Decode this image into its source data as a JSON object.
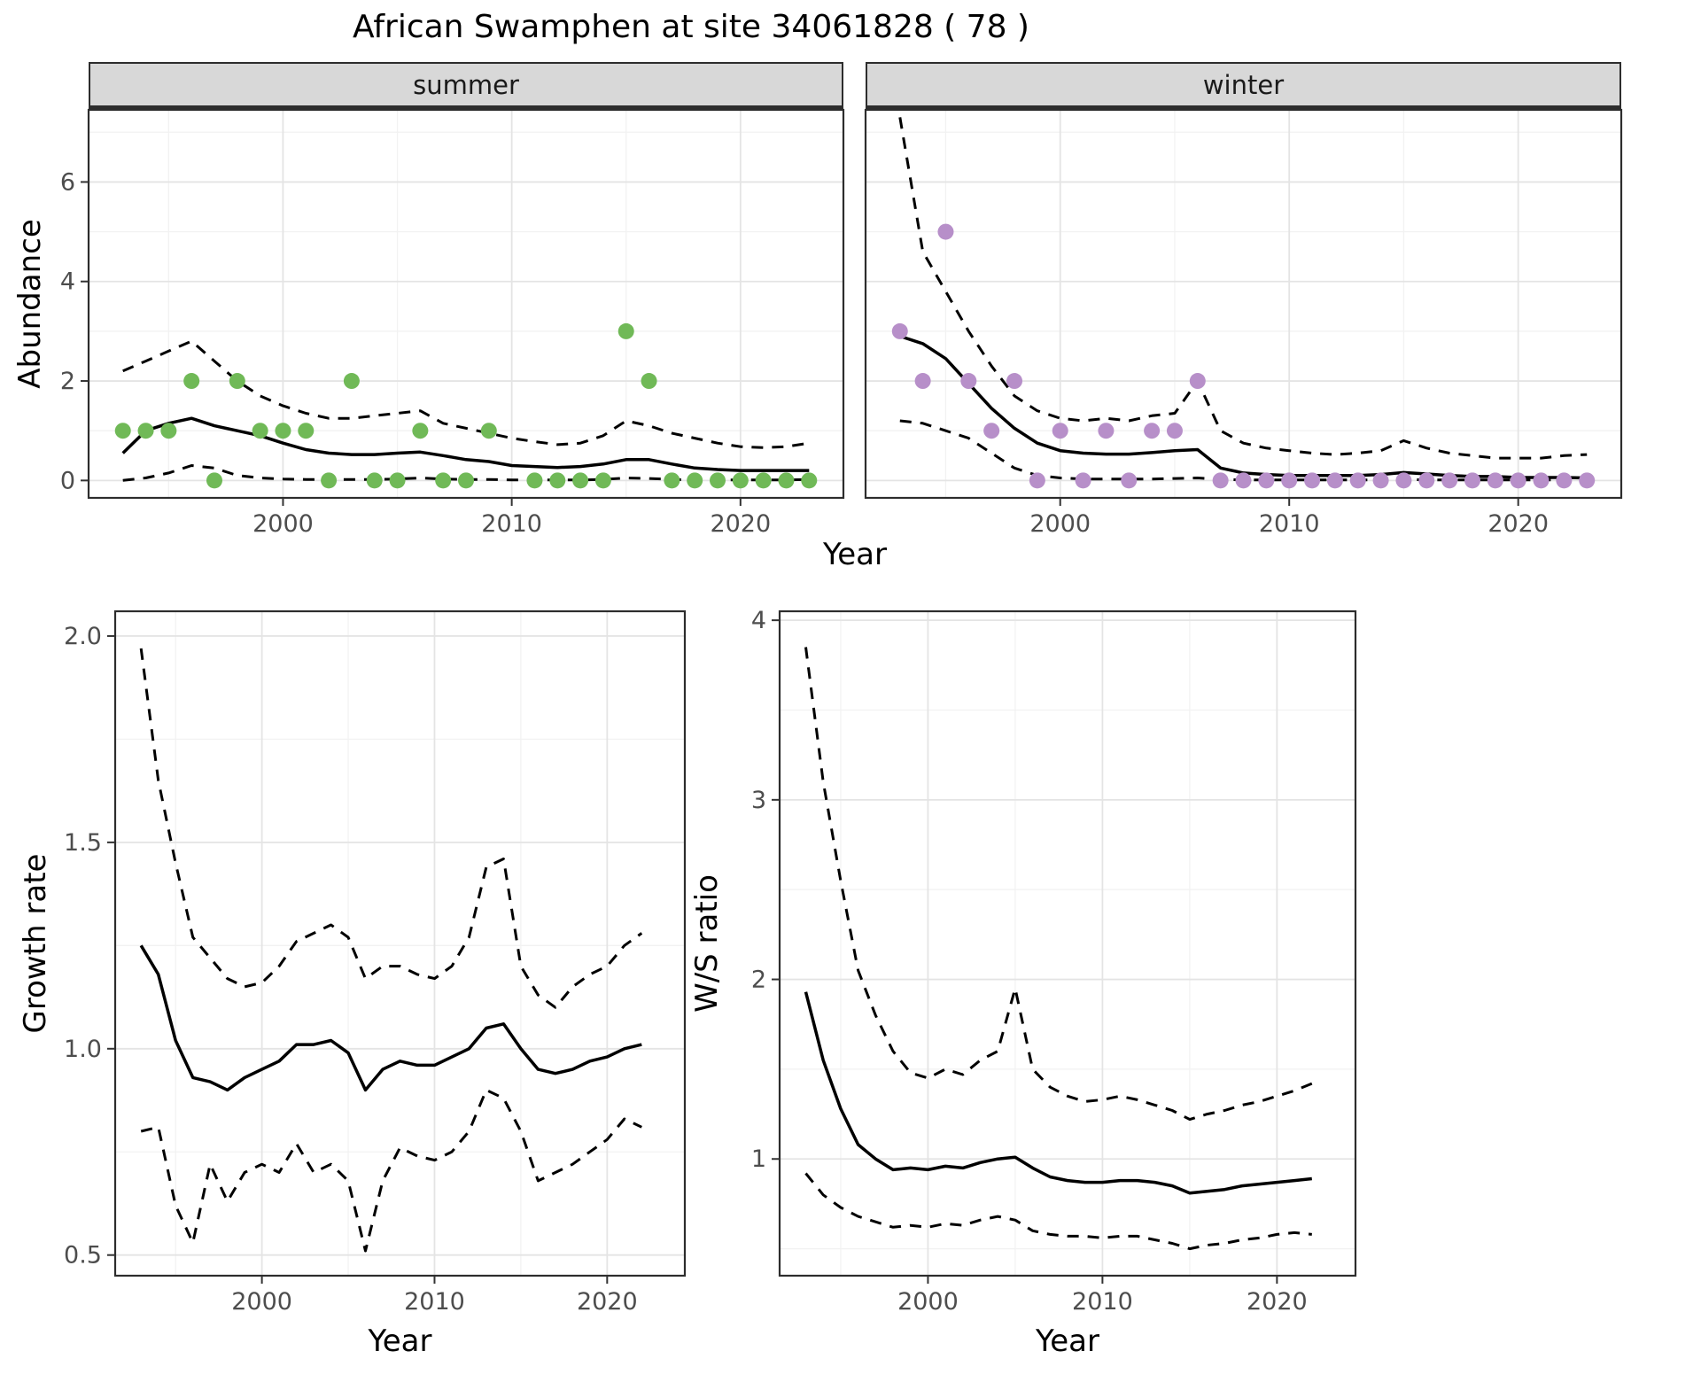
{
  "chart_data": {
    "type": "line",
    "title": "African Swamphen at site 34061828 ( 78 )",
    "line_color": "#000000",
    "ci_line_style": "dashed",
    "facet_row": {
      "ylabel": "Abundance",
      "xlabel": "Year",
      "xlim": [
        1991.5,
        2024.5
      ],
      "ylim": [
        -0.35,
        7.45
      ],
      "xticks": {
        "values": [
          2000,
          2010,
          2020
        ],
        "labels": [
          "2000",
          "2010",
          "2020"
        ]
      },
      "yticks": {
        "values": [
          0,
          2,
          4,
          6
        ],
        "labels": [
          "0",
          "2",
          "4",
          "6"
        ]
      },
      "years": [
        1993,
        1994,
        1995,
        1996,
        1997,
        1998,
        1999,
        2000,
        2001,
        2002,
        2003,
        2004,
        2005,
        2006,
        2007,
        2008,
        2009,
        2010,
        2011,
        2012,
        2013,
        2014,
        2015,
        2016,
        2017,
        2018,
        2019,
        2020,
        2021,
        2022,
        2023
      ],
      "facets": [
        {
          "label": "summer",
          "point_color": "#70b957",
          "points": [
            [
              1993,
              1
            ],
            [
              1994,
              1
            ],
            [
              1995,
              1
            ],
            [
              1996,
              2
            ],
            [
              1997,
              0
            ],
            [
              1998,
              2
            ],
            [
              1999,
              1
            ],
            [
              2000,
              1
            ],
            [
              2001,
              1
            ],
            [
              2002,
              0
            ],
            [
              2003,
              2
            ],
            [
              2004,
              0
            ],
            [
              2005,
              0
            ],
            [
              2006,
              1
            ],
            [
              2007,
              0
            ],
            [
              2008,
              0
            ],
            [
              2009,
              1
            ],
            [
              2011,
              0
            ],
            [
              2012,
              0
            ],
            [
              2013,
              0
            ],
            [
              2014,
              0
            ],
            [
              2015,
              3
            ],
            [
              2016,
              2
            ],
            [
              2017,
              0
            ],
            [
              2018,
              0
            ],
            [
              2019,
              0
            ],
            [
              2020,
              0
            ],
            [
              2021,
              0
            ],
            [
              2022,
              0
            ],
            [
              2023,
              0
            ]
          ],
          "fit": [
            0.55,
            1.0,
            1.15,
            1.25,
            1.1,
            1.0,
            0.9,
            0.75,
            0.62,
            0.55,
            0.52,
            0.52,
            0.55,
            0.57,
            0.5,
            0.42,
            0.38,
            0.3,
            0.28,
            0.26,
            0.28,
            0.33,
            0.42,
            0.42,
            0.33,
            0.25,
            0.22,
            0.2,
            0.2,
            0.2,
            0.2
          ],
          "upper": [
            2.2,
            2.4,
            2.6,
            2.8,
            2.4,
            2.0,
            1.7,
            1.5,
            1.35,
            1.25,
            1.25,
            1.3,
            1.35,
            1.4,
            1.15,
            1.05,
            0.95,
            0.85,
            0.78,
            0.72,
            0.75,
            0.9,
            1.2,
            1.1,
            0.95,
            0.85,
            0.75,
            0.68,
            0.66,
            0.68,
            0.75
          ],
          "lower": [
            0.0,
            0.05,
            0.15,
            0.3,
            0.25,
            0.1,
            0.05,
            0.03,
            0.02,
            0.02,
            0.02,
            0.02,
            0.03,
            0.05,
            0.03,
            0.02,
            0.02,
            0.01,
            0.01,
            0.01,
            0.01,
            0.02,
            0.05,
            0.04,
            0.02,
            0.01,
            0.01,
            0.01,
            0.01,
            0.01,
            0.02
          ]
        },
        {
          "label": "winter",
          "point_color": "#b78fc9",
          "points": [
            [
              1993,
              3
            ],
            [
              1994,
              2
            ],
            [
              1995,
              5
            ],
            [
              1996,
              2
            ],
            [
              1997,
              1
            ],
            [
              1998,
              2
            ],
            [
              1999,
              0
            ],
            [
              2000,
              1
            ],
            [
              2001,
              0
            ],
            [
              2002,
              1
            ],
            [
              2003,
              0
            ],
            [
              2004,
              1
            ],
            [
              2005,
              1
            ],
            [
              2006,
              2
            ],
            [
              2007,
              0
            ],
            [
              2008,
              0
            ],
            [
              2009,
              0
            ],
            [
              2010,
              0
            ],
            [
              2011,
              0
            ],
            [
              2012,
              0
            ],
            [
              2013,
              0
            ],
            [
              2014,
              0
            ],
            [
              2015,
              0
            ],
            [
              2016,
              0
            ],
            [
              2017,
              0
            ],
            [
              2018,
              0
            ],
            [
              2019,
              0
            ],
            [
              2020,
              0
            ],
            [
              2021,
              0
            ],
            [
              2022,
              0
            ],
            [
              2023,
              0
            ]
          ],
          "fit": [
            2.9,
            2.75,
            2.45,
            1.95,
            1.45,
            1.05,
            0.75,
            0.6,
            0.55,
            0.53,
            0.53,
            0.56,
            0.6,
            0.62,
            0.25,
            0.15,
            0.12,
            0.1,
            0.1,
            0.1,
            0.1,
            0.12,
            0.16,
            0.13,
            0.1,
            0.08,
            0.08,
            0.06,
            0.06,
            0.06,
            0.05
          ],
          "upper": [
            7.3,
            4.6,
            3.8,
            3.0,
            2.3,
            1.7,
            1.4,
            1.25,
            1.2,
            1.25,
            1.2,
            1.3,
            1.35,
            2.0,
            1.0,
            0.75,
            0.65,
            0.6,
            0.55,
            0.52,
            0.55,
            0.6,
            0.8,
            0.65,
            0.55,
            0.5,
            0.45,
            0.45,
            0.45,
            0.5,
            0.52
          ],
          "lower": [
            1.2,
            1.15,
            1.0,
            0.85,
            0.55,
            0.25,
            0.1,
            0.05,
            0.03,
            0.03,
            0.03,
            0.03,
            0.04,
            0.05,
            0.02,
            0.01,
            0.01,
            0.01,
            0.01,
            0.01,
            0.01,
            0.01,
            0.02,
            0.01,
            0.01,
            0.01,
            0.01,
            0.01,
            0.01,
            0.01,
            0.01
          ]
        }
      ]
    },
    "growth_rate": {
      "ylabel": "Growth rate",
      "xlabel": "Year",
      "xlim": [
        1991.5,
        2024.5
      ],
      "ylim": [
        0.45,
        2.06
      ],
      "xticks": {
        "values": [
          2000,
          2010,
          2020
        ],
        "labels": [
          "2000",
          "2010",
          "2020"
        ]
      },
      "yticks": {
        "values": [
          0.5,
          1.0,
          1.5,
          2.0
        ],
        "labels": [
          "0.5",
          "1.0",
          "1.5",
          "2.0"
        ]
      },
      "years": [
        1993,
        1994,
        1995,
        1996,
        1997,
        1998,
        1999,
        2000,
        2001,
        2002,
        2003,
        2004,
        2005,
        2006,
        2007,
        2008,
        2009,
        2010,
        2011,
        2012,
        2013,
        2014,
        2015,
        2016,
        2017,
        2018,
        2019,
        2020,
        2021,
        2022
      ],
      "fit": [
        1.25,
        1.18,
        1.02,
        0.93,
        0.92,
        0.9,
        0.93,
        0.95,
        0.97,
        1.01,
        1.01,
        1.02,
        0.99,
        0.9,
        0.95,
        0.97,
        0.96,
        0.96,
        0.98,
        1.0,
        1.05,
        1.06,
        1.0,
        0.95,
        0.94,
        0.95,
        0.97,
        0.98,
        1.0,
        1.01
      ],
      "upper": [
        1.97,
        1.65,
        1.45,
        1.27,
        1.22,
        1.17,
        1.15,
        1.16,
        1.2,
        1.26,
        1.28,
        1.3,
        1.27,
        1.17,
        1.2,
        1.2,
        1.18,
        1.17,
        1.2,
        1.27,
        1.44,
        1.46,
        1.2,
        1.13,
        1.1,
        1.15,
        1.18,
        1.2,
        1.25,
        1.28
      ],
      "lower": [
        0.8,
        0.81,
        0.62,
        0.53,
        0.72,
        0.63,
        0.7,
        0.72,
        0.7,
        0.77,
        0.7,
        0.72,
        0.68,
        0.51,
        0.68,
        0.76,
        0.74,
        0.73,
        0.75,
        0.8,
        0.9,
        0.88,
        0.8,
        0.68,
        0.7,
        0.72,
        0.75,
        0.78,
        0.83,
        0.81
      ]
    },
    "ws_ratio": {
      "ylabel": "W/S ratio",
      "xlabel": "Year",
      "xlim": [
        1991.5,
        2024.5
      ],
      "ylim": [
        0.35,
        4.05
      ],
      "xticks": {
        "values": [
          2000,
          2010,
          2020
        ],
        "labels": [
          "2000",
          "2010",
          "2020"
        ]
      },
      "yticks": {
        "values": [
          1,
          2,
          3,
          4
        ],
        "labels": [
          "1",
          "2",
          "3",
          "4"
        ]
      },
      "years": [
        1993,
        1994,
        1995,
        1996,
        1997,
        1998,
        1999,
        2000,
        2001,
        2002,
        2003,
        2004,
        2005,
        2006,
        2007,
        2008,
        2009,
        2010,
        2011,
        2012,
        2013,
        2014,
        2015,
        2016,
        2017,
        2018,
        2019,
        2020,
        2021,
        2022
      ],
      "fit": [
        1.93,
        1.55,
        1.28,
        1.08,
        1.0,
        0.94,
        0.95,
        0.94,
        0.96,
        0.95,
        0.98,
        1.0,
        1.01,
        0.95,
        0.9,
        0.88,
        0.87,
        0.87,
        0.88,
        0.88,
        0.87,
        0.85,
        0.81,
        0.82,
        0.83,
        0.85,
        0.86,
        0.87,
        0.88,
        0.89
      ],
      "upper": [
        3.85,
        3.1,
        2.55,
        2.05,
        1.8,
        1.6,
        1.48,
        1.45,
        1.5,
        1.47,
        1.55,
        1.6,
        1.95,
        1.5,
        1.4,
        1.35,
        1.32,
        1.33,
        1.35,
        1.33,
        1.3,
        1.27,
        1.22,
        1.25,
        1.27,
        1.3,
        1.32,
        1.35,
        1.38,
        1.42
      ],
      "lower": [
        0.92,
        0.8,
        0.73,
        0.68,
        0.65,
        0.62,
        0.63,
        0.62,
        0.64,
        0.63,
        0.66,
        0.68,
        0.66,
        0.6,
        0.58,
        0.57,
        0.57,
        0.56,
        0.57,
        0.57,
        0.55,
        0.53,
        0.5,
        0.52,
        0.53,
        0.55,
        0.56,
        0.58,
        0.59,
        0.58
      ]
    }
  }
}
